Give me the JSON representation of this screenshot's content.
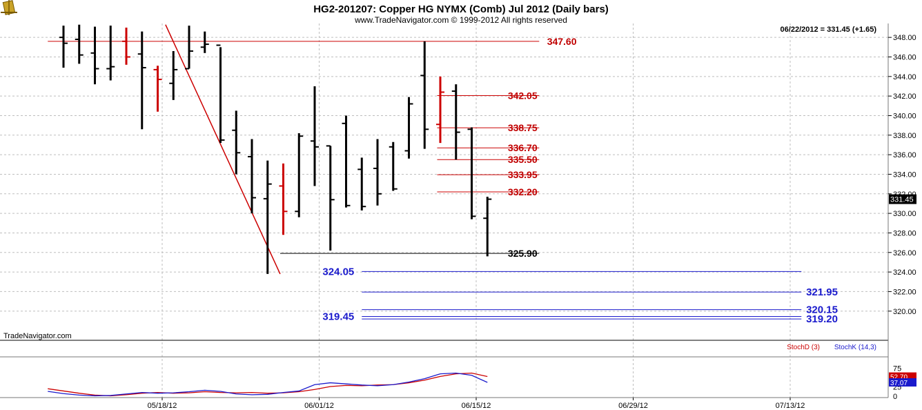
{
  "header": {
    "title": "HG2-201207:  Copper HG NYMX (Comb) Jul 2012  (Daily bars)",
    "copyright": "www.TradeNavigator.com © 1999-2012 All rights reserved",
    "readout": "06/22/2012 = 331.45 (+1.65)",
    "watermark": "TradeNavigator.com"
  },
  "colors": {
    "red": "#cc0000",
    "blue": "#1a1acc",
    "black": "#000000",
    "grid": "#bdbdbd"
  },
  "chart_data": {
    "type": "bar",
    "subtype": "ohlc",
    "ylim": [
      318.5,
      349.0
    ],
    "y_ticks": [
      "348.00",
      "346.00",
      "344.00",
      "342.00",
      "340.00",
      "338.00",
      "336.00",
      "334.00",
      "332.00",
      "330.00",
      "328.00",
      "326.00",
      "324.00",
      "322.00",
      "320.00"
    ],
    "last_price_label": "331.45",
    "last_price": 331.45,
    "x_ticks": [
      {
        "label": "05/18/12",
        "bar": 4
      },
      {
        "label": "06/01/12",
        "bar": 14
      },
      {
        "label": "06/15/12",
        "bar": 24
      },
      {
        "label": "06/29/12",
        "bar": 34
      },
      {
        "label": "07/13/12",
        "bar": 44
      }
    ],
    "bars": [
      {
        "h": 349.2,
        "l": 344.9,
        "o": 348.0,
        "c": 347.4,
        "color": "black"
      },
      {
        "h": 349.3,
        "l": 345.3,
        "o": 347.8,
        "c": 346.2,
        "color": "black"
      },
      {
        "h": 349.1,
        "l": 343.2,
        "o": 346.4,
        "c": 344.8,
        "color": "black"
      },
      {
        "h": 349.2,
        "l": 343.6,
        "o": 344.8,
        "c": 345.0,
        "color": "black"
      },
      {
        "h": 349.0,
        "l": 345.2,
        "o": 347.6,
        "c": 346.0,
        "color": "red"
      },
      {
        "h": 348.6,
        "l": 338.6,
        "o": 346.3,
        "c": 344.9,
        "color": "black"
      },
      {
        "h": 345.1,
        "l": 340.4,
        "o": 344.7,
        "c": 343.7,
        "color": "red"
      },
      {
        "h": 346.6,
        "l": 341.6,
        "o": 343.3,
        "c": 344.7,
        "color": "black"
      },
      {
        "h": 349.2,
        "l": 344.8,
        "o": 344.8,
        "c": 346.6,
        "color": "black"
      },
      {
        "h": 348.6,
        "l": 346.4,
        "o": 347.0,
        "c": 347.3,
        "color": "black"
      },
      {
        "h": 347.0,
        "l": 337.2,
        "o": 347.2,
        "c": 337.5,
        "color": "black"
      },
      {
        "h": 340.5,
        "l": 334.0,
        "o": 338.5,
        "c": 336.2,
        "color": "black"
      },
      {
        "h": 337.6,
        "l": 330.0,
        "o": 335.8,
        "c": 331.6,
        "color": "black"
      },
      {
        "h": 335.4,
        "l": 323.8,
        "o": 331.5,
        "c": 333.0,
        "color": "black"
      },
      {
        "h": 335.1,
        "l": 327.8,
        "o": 332.8,
        "c": 330.2,
        "color": "red"
      },
      {
        "h": 338.2,
        "l": 329.6,
        "o": 330.2,
        "c": 337.9,
        "color": "black"
      },
      {
        "h": 343.0,
        "l": 332.8,
        "o": 337.4,
        "c": 336.8,
        "color": "black"
      },
      {
        "h": 336.9,
        "l": 326.2,
        "o": 336.9,
        "c": 331.4,
        "color": "black"
      },
      {
        "h": 340.0,
        "l": 330.6,
        "o": 339.2,
        "c": 330.8,
        "color": "black"
      },
      {
        "h": 335.7,
        "l": 330.3,
        "o": 334.5,
        "c": 330.7,
        "color": "black"
      },
      {
        "h": 337.6,
        "l": 330.8,
        "o": 334.6,
        "c": 332.0,
        "color": "black"
      },
      {
        "h": 337.3,
        "l": 332.3,
        "o": 336.8,
        "c": 332.5,
        "color": "black"
      },
      {
        "h": 341.9,
        "l": 335.6,
        "o": 336.4,
        "c": 341.2,
        "color": "black"
      },
      {
        "h": 347.6,
        "l": 336.6,
        "o": 344.1,
        "c": 338.6,
        "color": "black"
      },
      {
        "h": 344.0,
        "l": 337.2,
        "o": 339.1,
        "c": 342.4,
        "color": "red"
      },
      {
        "h": 343.2,
        "l": 335.5,
        "o": 342.5,
        "c": 338.3,
        "color": "black"
      },
      {
        "h": 338.8,
        "l": 329.4,
        "o": 338.6,
        "c": 329.7,
        "color": "black"
      },
      {
        "h": 331.7,
        "l": 325.6,
        "o": 329.5,
        "c": 331.45,
        "color": "black"
      }
    ],
    "levels": [
      {
        "value": 347.6,
        "label": "347.60",
        "color": "red",
        "from_bar": -1,
        "to_bar": 30.3,
        "label_bar": 30.8
      },
      {
        "value": 342.05,
        "label": "342.05",
        "color": "red",
        "from_bar": 23.8,
        "to_bar": 30.3,
        "label_bar": 28.3
      },
      {
        "value": 338.75,
        "label": "338.75",
        "color": "red",
        "from_bar": 23.8,
        "to_bar": 30.3,
        "label_bar": 28.3
      },
      {
        "value": 336.7,
        "label": "336.70",
        "color": "red",
        "from_bar": 23.8,
        "to_bar": 30.3,
        "label_bar": 28.3
      },
      {
        "value": 335.5,
        "label": "335.50",
        "color": "red",
        "from_bar": 23.8,
        "to_bar": 30.3,
        "label_bar": 28.3
      },
      {
        "value": 333.95,
        "label": "333.95",
        "color": "red",
        "from_bar": 23.8,
        "to_bar": 30.3,
        "label_bar": 28.3
      },
      {
        "value": 332.2,
        "label": "332.20",
        "color": "red",
        "from_bar": 23.8,
        "to_bar": 30.3,
        "label_bar": 28.3
      },
      {
        "value": 325.9,
        "label": "325.90",
        "color": "black",
        "from_bar": 13.8,
        "to_bar": 30.3,
        "label_bar": 28.3
      },
      {
        "value": 324.05,
        "label": "324.05",
        "color": "blue",
        "from_bar": 19.0,
        "to_bar": 47.0,
        "label_bar": 16.5
      },
      {
        "value": 321.95,
        "label": "321.95",
        "color": "blue",
        "from_bar": 19.0,
        "to_bar": 47.0,
        "label_bar": 47.3
      },
      {
        "value": 320.15,
        "label": "320.15",
        "color": "blue",
        "from_bar": 19.0,
        "to_bar": 47.0,
        "label_bar": 47.3
      },
      {
        "value": 319.45,
        "label": "319.45",
        "color": "blue",
        "from_bar": 19.0,
        "to_bar": 47.0,
        "label_bar": 16.5
      },
      {
        "value": 319.2,
        "label": "319.20",
        "color": "blue",
        "from_bar": 19.0,
        "to_bar": 47.0,
        "label_bar": 47.3
      }
    ],
    "trendline": {
      "from": {
        "bar": 6.5,
        "value": 349.3
      },
      "to": {
        "bar": 13.8,
        "value": 323.8
      },
      "color": "red"
    },
    "oscillator": {
      "ylim": [
        0,
        100
      ],
      "y_ticks": [
        "75",
        "25",
        "0"
      ],
      "series": [
        {
          "name": "StochD (3)",
          "label": "StochD (3)",
          "color": "red",
          "last_label": "52.70",
          "values": [
            [
              -1,
              20
            ],
            [
              0,
              14
            ],
            [
              1,
              8
            ],
            [
              2,
              3
            ],
            [
              3,
              1
            ],
            [
              4,
              4
            ],
            [
              5,
              8
            ],
            [
              6,
              10
            ],
            [
              7,
              8
            ],
            [
              8,
              9
            ],
            [
              9,
              12
            ],
            [
              10,
              10
            ],
            [
              11,
              9
            ],
            [
              12,
              10
            ],
            [
              13,
              8
            ],
            [
              14,
              9
            ],
            [
              15,
              12
            ],
            [
              16,
              18
            ],
            [
              17,
              26
            ],
            [
              18,
              29
            ],
            [
              19,
              28
            ],
            [
              20,
              30
            ],
            [
              21,
              31
            ],
            [
              22,
              36
            ],
            [
              23,
              43
            ],
            [
              24,
              53
            ],
            [
              25,
              60
            ],
            [
              26,
              62
            ],
            [
              27,
              52.7
            ]
          ]
        },
        {
          "name": "StochK (14,3)",
          "label": "StochK (14,3)",
          "color": "blue",
          "last_label": "37.07",
          "values": [
            [
              -1,
              13
            ],
            [
              0,
              7
            ],
            [
              1,
              3
            ],
            [
              2,
              1
            ],
            [
              3,
              2
            ],
            [
              4,
              6
            ],
            [
              5,
              10
            ],
            [
              6,
              8
            ],
            [
              7,
              9
            ],
            [
              8,
              12
            ],
            [
              9,
              16
            ],
            [
              10,
              13
            ],
            [
              11,
              6
            ],
            [
              12,
              4
            ],
            [
              13,
              5
            ],
            [
              14,
              10
            ],
            [
              15,
              14
            ],
            [
              16,
              31
            ],
            [
              17,
              36
            ],
            [
              18,
              33
            ],
            [
              19,
              30
            ],
            [
              20,
              28
            ],
            [
              21,
              31
            ],
            [
              22,
              38
            ],
            [
              23,
              47
            ],
            [
              24,
              60
            ],
            [
              25,
              62
            ],
            [
              26,
              56
            ],
            [
              27,
              37.07
            ]
          ]
        }
      ]
    }
  }
}
